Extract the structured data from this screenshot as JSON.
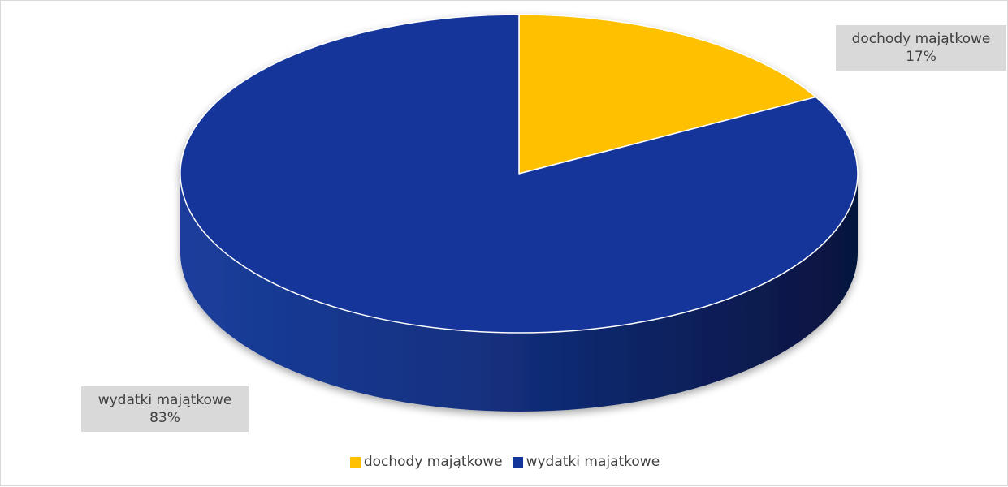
{
  "chart_data": {
    "type": "pie",
    "three_d": true,
    "title": "",
    "slices": [
      {
        "name": "dochody majątkowe",
        "value": 17,
        "label": "17%",
        "color": "#FFC000"
      },
      {
        "name": "wydatki majątkowe",
        "value": 83,
        "label": "83%",
        "color": "#12359A"
      }
    ],
    "legend_position": "bottom",
    "side_color": "#0A1F5C"
  }
}
